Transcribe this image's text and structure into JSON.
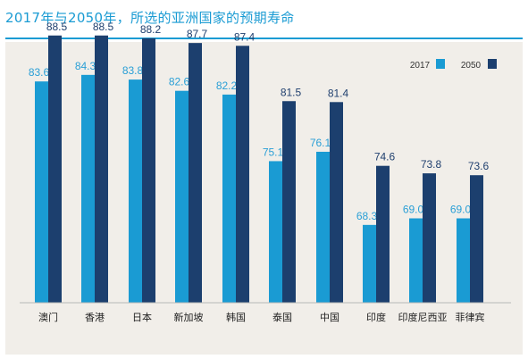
{
  "title": "2017年与2050年，所选的亚洲国家的预期寿命",
  "colors": {
    "accent": "#1a9bd3",
    "series_2017": "#1a9bd3",
    "series_2050": "#1c3f6e",
    "panel_bg": "#f1eee9"
  },
  "chart_data": {
    "type": "bar",
    "title": "2017年与2050年，所选的亚洲国家的预期寿命",
    "xlabel": "",
    "ylabel": "",
    "ylim": [
      60,
      92
    ],
    "grid": false,
    "legend": "top-right",
    "categories": [
      "澳门",
      "香港",
      "日本",
      "新加坡",
      "韩国",
      "泰国",
      "中国",
      "印度",
      "印度尼西亚",
      "菲律宾"
    ],
    "series": [
      {
        "name": "2017",
        "values": [
          83.6,
          84.3,
          83.8,
          82.6,
          82.2,
          75.1,
          76.1,
          68.3,
          69.0,
          69.0
        ],
        "labels": [
          "83.6",
          "84.3",
          "83.8",
          "82.6",
          "82.2",
          "75.1",
          "76.1",
          "68.3",
          "69.0",
          "69.0"
        ]
      },
      {
        "name": "2050",
        "values": [
          88.5,
          88.5,
          88.2,
          87.7,
          87.4,
          81.5,
          81.4,
          74.6,
          73.8,
          73.6
        ],
        "labels": [
          "88.5",
          "88.5",
          "88.2",
          "87.7",
          "87.4",
          "81.5",
          "81.4",
          "74.6",
          "73.8",
          "73.6"
        ]
      }
    ]
  }
}
